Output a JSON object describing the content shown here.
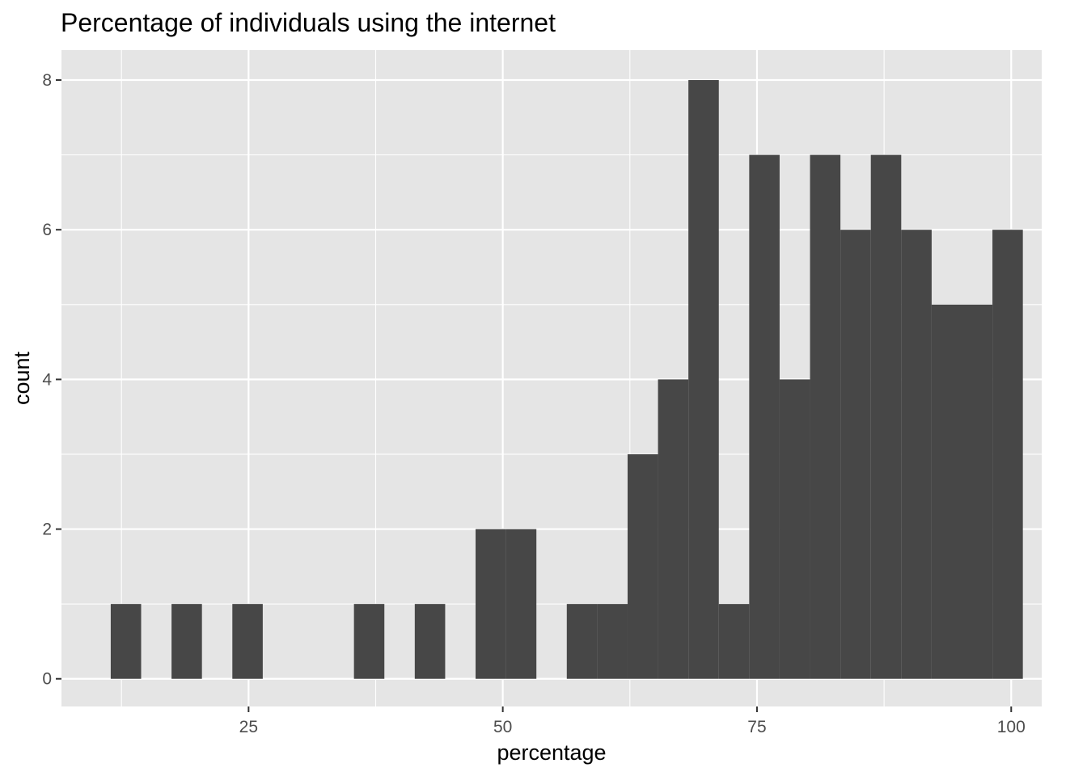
{
  "chart_data": {
    "type": "bar",
    "title": "Percentage of individuals using the internet",
    "xlabel": "percentage",
    "ylabel": "count",
    "xlim": [
      6.6,
      103.0
    ],
    "ylim": [
      -0.37,
      8.4
    ],
    "x_ticks": [
      25,
      50,
      75,
      100
    ],
    "y_ticks": [
      0,
      2,
      4,
      6,
      8
    ],
    "grid": true,
    "legend": "none",
    "bin_width": 2.99,
    "bins": [
      {
        "center": 12.94,
        "count": 1
      },
      {
        "center": 15.93,
        "count": 0
      },
      {
        "center": 18.92,
        "count": 1
      },
      {
        "center": 21.91,
        "count": 0
      },
      {
        "center": 24.9,
        "count": 1
      },
      {
        "center": 27.89,
        "count": 0
      },
      {
        "center": 30.88,
        "count": 0
      },
      {
        "center": 33.87,
        "count": 0
      },
      {
        "center": 36.86,
        "count": 1
      },
      {
        "center": 39.85,
        "count": 0
      },
      {
        "center": 42.84,
        "count": 1
      },
      {
        "center": 45.83,
        "count": 0
      },
      {
        "center": 48.82,
        "count": 2
      },
      {
        "center": 51.81,
        "count": 2
      },
      {
        "center": 54.8,
        "count": 0
      },
      {
        "center": 57.79,
        "count": 1
      },
      {
        "center": 60.78,
        "count": 1
      },
      {
        "center": 63.77,
        "count": 3
      },
      {
        "center": 66.76,
        "count": 4
      },
      {
        "center": 69.75,
        "count": 8
      },
      {
        "center": 72.74,
        "count": 1
      },
      {
        "center": 75.73,
        "count": 7
      },
      {
        "center": 78.72,
        "count": 4
      },
      {
        "center": 81.71,
        "count": 7
      },
      {
        "center": 84.7,
        "count": 6
      },
      {
        "center": 87.69,
        "count": 7
      },
      {
        "center": 90.68,
        "count": 6
      },
      {
        "center": 93.67,
        "count": 5
      },
      {
        "center": 96.66,
        "count": 5
      },
      {
        "center": 99.65,
        "count": 6
      }
    ],
    "colors": {
      "panel": "#e5e5e5",
      "grid": "#ffffff",
      "bar": "#474747",
      "tick_text": "#4d4d4d",
      "tick_mark": "#333333"
    }
  }
}
